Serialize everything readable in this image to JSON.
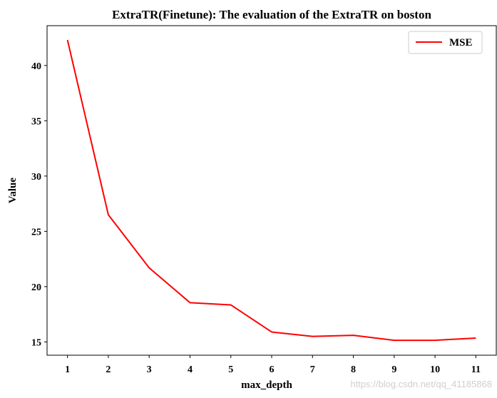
{
  "chart_data": {
    "type": "line",
    "title": "ExtraTR(Finetune): The evaluation of the ExtraTR on boston",
    "xlabel": "max_depth",
    "ylabel": "Value",
    "x": [
      1,
      2,
      3,
      4,
      5,
      6,
      7,
      8,
      9,
      10,
      11
    ],
    "xticks": [
      "1",
      "2",
      "3",
      "4",
      "5",
      "6",
      "7",
      "8",
      "9",
      "10",
      "11"
    ],
    "yticks": [
      "15",
      "20",
      "25",
      "30",
      "35",
      "40"
    ],
    "ytick_values": [
      15,
      20,
      25,
      30,
      35,
      40
    ],
    "xlim": [
      0.5,
      11.5
    ],
    "ylim": [
      13.8,
      43.6
    ],
    "grid": false,
    "legend": "top-right",
    "series": [
      {
        "name": "MSE",
        "color": "#ff0000",
        "values": [
          42.3,
          26.5,
          21.7,
          18.55,
          18.35,
          15.9,
          15.5,
          15.6,
          15.15,
          15.15,
          15.35
        ]
      }
    ]
  },
  "watermark": "https://blog.csdn.net/qq_41185868"
}
